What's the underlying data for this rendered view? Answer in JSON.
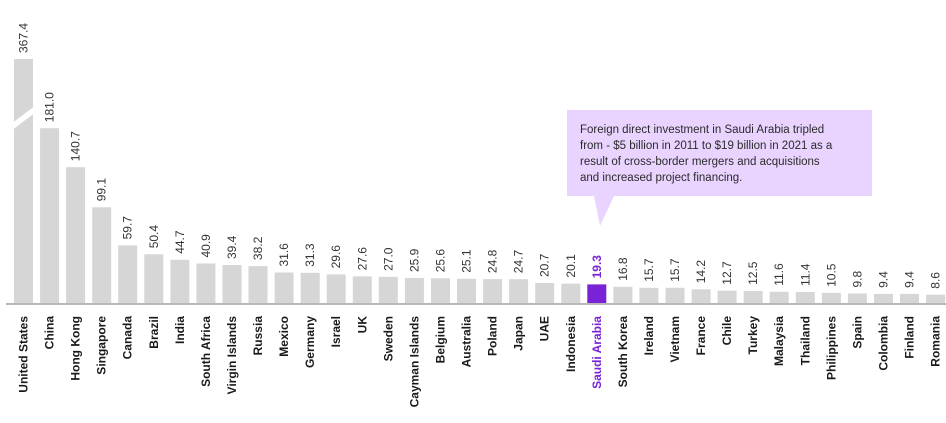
{
  "chart_data": {
    "type": "bar",
    "categories": [
      "United States",
      "China",
      "Hong Kong",
      "Singapore",
      "Canada",
      "Brazil",
      "India",
      "South Africa",
      "Virgin Islands",
      "Russia",
      "Mexico",
      "Germany",
      "Israel",
      "UK",
      "Sweden",
      "Cayman Islands",
      "Belgium",
      "Australia",
      "Poland",
      "Japan",
      "UAE",
      "Indonesia",
      "Saudi Arabia",
      "South Korea",
      "Ireland",
      "Vietnam",
      "France",
      "Chile",
      "Turkey",
      "Malaysia",
      "Thailand",
      "Philippines",
      "Spain",
      "Colombia",
      "Finland",
      "Romania"
    ],
    "values": [
      367.4,
      181.0,
      140.7,
      99.1,
      59.7,
      50.4,
      44.7,
      40.9,
      39.4,
      38.2,
      31.6,
      31.3,
      29.6,
      27.6,
      27.0,
      25.9,
      25.6,
      25.1,
      24.8,
      24.7,
      20.7,
      20.1,
      19.3,
      16.8,
      15.7,
      15.7,
      14.2,
      12.7,
      12.5,
      11.6,
      11.4,
      10.5,
      9.8,
      9.4,
      9.4,
      8.6
    ],
    "value_labels": [
      "367.4",
      "181.0",
      "140.7",
      "99.1",
      "59.7",
      "50.4",
      "44.7",
      "40.9",
      "39.4",
      "38.2",
      "31.6",
      "31.3",
      "29.6",
      "27.6",
      "27.0",
      "25.9",
      "25.6",
      "25.1",
      "24.8",
      "24.7",
      "20.7",
      "20.1",
      "19.3",
      "16.8",
      "15.7",
      "15.7",
      "14.2",
      "12.7",
      "12.5",
      "11.6",
      "11.4",
      "10.5",
      "9.8",
      "9.4",
      "9.4",
      "8.6"
    ],
    "highlight": "Saudi Arabia",
    "axis_break_on": "United States",
    "title": "",
    "xlabel": "",
    "ylabel": "",
    "ylim": [
      0,
      200
    ],
    "grid": false,
    "colors": {
      "bar": "#d6d6d6",
      "highlight": "#7a22d6",
      "baseline": "#b8b8b8",
      "callout_bg": "#e9d3ff"
    },
    "annotation": {
      "lines": [
        "Foreign direct investment in Saudi Arabia tripled",
        "from - $5 billion in 2011 to $19 billion in 2021 as a",
        "result of cross-border mergers and acquisitions",
        "and increased project financing."
      ]
    }
  }
}
